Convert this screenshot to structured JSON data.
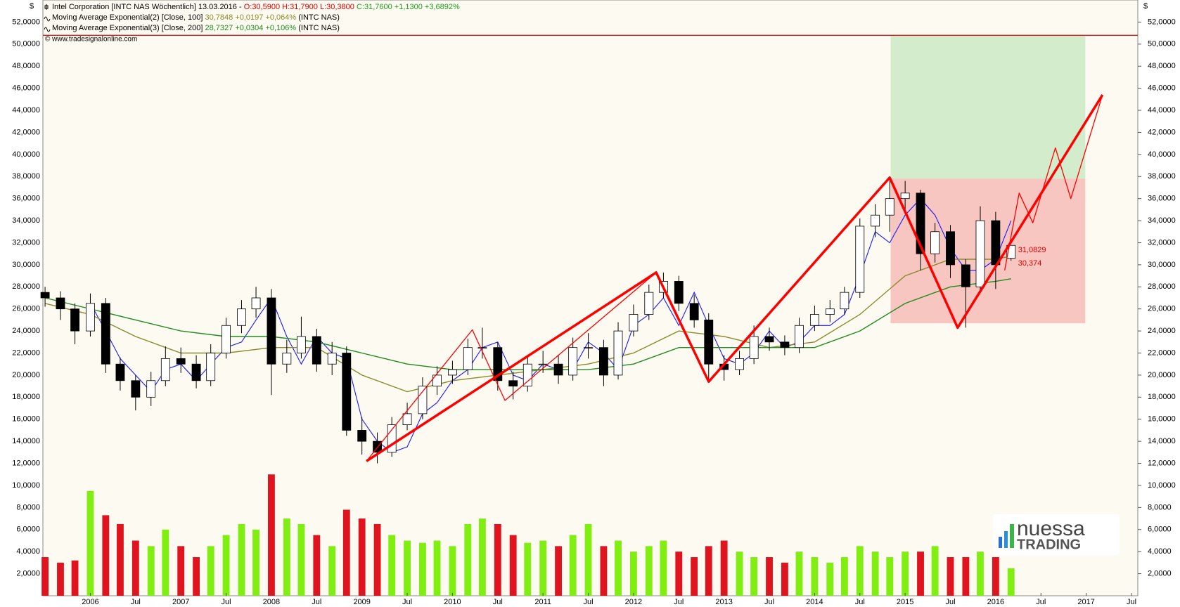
{
  "chart_data": {
    "type": "candlestick",
    "title": "Intel Corporation [INTC NAS  Wöchentlich] 13.03.2016 -",
    "quote": [
      {
        "text": "O:30,5900 H:31,7900 L:30,3800",
        "color": "#e00000"
      },
      {
        "text": "C:31,7600 +1,1300 +3,6892%",
        "color": "#1aa01a"
      }
    ],
    "symbol": "(INTC NAS)",
    "currency": "$",
    "source": "© www.tradesignalonline.com",
    "x": [
      2005.5,
      2005.67,
      2005.83,
      2006,
      2006.17,
      2006.33,
      2006.5,
      2006.67,
      2006.83,
      2007,
      2007.17,
      2007.33,
      2007.5,
      2007.67,
      2007.83,
      2008,
      2008.17,
      2008.33,
      2008.5,
      2008.67,
      2008.83,
      2009,
      2009.17,
      2009.33,
      2009.5,
      2009.67,
      2009.83,
      2010,
      2010.17,
      2010.33,
      2010.5,
      2010.67,
      2010.83,
      2011,
      2011.17,
      2011.33,
      2011.5,
      2011.67,
      2011.83,
      2012,
      2012.17,
      2012.33,
      2012.5,
      2012.67,
      2012.83,
      2013,
      2013.17,
      2013.33,
      2013.5,
      2013.67,
      2013.83,
      2014,
      2014.17,
      2014.33,
      2014.5,
      2014.67,
      2014.83,
      2015,
      2015.17,
      2015.33,
      2015.5,
      2015.67,
      2015.83,
      2016,
      2016.17
    ],
    "open": [
      27.5,
      27,
      26,
      24,
      26.5,
      21,
      19.5,
      18,
      19.5,
      21.5,
      21,
      19.5,
      22,
      24.5,
      26,
      27,
      21,
      22,
      23.5,
      21,
      22,
      15,
      14,
      13,
      15.5,
      16.5,
      19,
      20,
      20.5,
      22.5,
      22.5,
      19.5,
      19,
      21,
      21,
      20,
      22.5,
      22.5,
      20,
      24,
      25.5,
      27.5,
      28.5,
      26.5,
      25,
      21,
      20.5,
      21.5,
      23.5,
      23,
      22.5,
      24.5,
      25.5,
      26,
      27.5,
      33.5,
      34.5,
      36,
      36.5,
      31,
      33,
      30,
      28,
      34,
      30.59
    ],
    "high": [
      28,
      27.6,
      26.5,
      27.4,
      27,
      21.6,
      20,
      20.3,
      22.6,
      22.5,
      21.8,
      22.8,
      25.2,
      26.8,
      28,
      27.8,
      23.2,
      25.3,
      24.2,
      23,
      22.6,
      16.2,
      14.8,
      16.2,
      17.5,
      19.8,
      20.8,
      21.3,
      23.3,
      24.3,
      23,
      20.3,
      21.8,
      22.2,
      21.8,
      23.4,
      23.8,
      23.2,
      24.8,
      26.4,
      28.2,
      29.3,
      29,
      27.3,
      25.6,
      21.8,
      22.2,
      24.5,
      24.3,
      23.6,
      25.2,
      26.3,
      26.8,
      28,
      34.2,
      35.5,
      37.9,
      37.6,
      36.8,
      33.8,
      33.6,
      30.5,
      35.3,
      34.8,
      31.79
    ],
    "low": [
      26.2,
      25,
      22.8,
      23.5,
      20.2,
      18.6,
      16.8,
      17.2,
      19,
      20.2,
      18.8,
      19,
      21.5,
      23.8,
      25.2,
      18.2,
      20.2,
      21.5,
      20.3,
      20,
      14.5,
      12.8,
      12,
      12.6,
      15,
      16,
      18.2,
      19.2,
      20,
      21.5,
      18.6,
      17.8,
      18.5,
      20.2,
      19.2,
      19.5,
      21.5,
      19,
      19.6,
      23.5,
      25,
      27,
      25.8,
      24.3,
      19.4,
      19.5,
      20,
      21,
      22.2,
      21.8,
      22,
      24,
      24.8,
      25.5,
      27,
      32.5,
      33,
      34.8,
      29.5,
      30.2,
      28.8,
      24.3,
      27.5,
      27.8,
      30.38
    ],
    "close": [
      27,
      26,
      24,
      26.5,
      21,
      19.5,
      18,
      19.5,
      21.5,
      21,
      19.5,
      22,
      24.5,
      26,
      27,
      21,
      22,
      23.5,
      21,
      22,
      15,
      14,
      13,
      15.5,
      16.5,
      19,
      20,
      20.5,
      22.5,
      22.5,
      19.5,
      19,
      21,
      21,
      20,
      22.5,
      22.5,
      20,
      24,
      25.5,
      27.5,
      28.5,
      26.5,
      25,
      21,
      20.5,
      21.5,
      23.5,
      23,
      22.5,
      24.5,
      25.5,
      26,
      27.5,
      33.5,
      34.5,
      36,
      36.5,
      31,
      33,
      30,
      28,
      34,
      30,
      31.76
    ],
    "volume": [
      3.5,
      3,
      3.2,
      9.5,
      7.3,
      6.5,
      5,
      4.5,
      6,
      4.5,
      3.5,
      4.5,
      5.5,
      6.5,
      6,
      11,
      7,
      6.5,
      5.5,
      4.5,
      7.8,
      7,
      6.5,
      5.5,
      5,
      4.8,
      5,
      4.5,
      6.5,
      7,
      6.5,
      5.5,
      4.8,
      5,
      4.5,
      5.5,
      6.5,
      4.5,
      5,
      4,
      4.5,
      5,
      4,
      3.5,
      4.5,
      5,
      4,
      3.5,
      3.5,
      3,
      4,
      3.5,
      3,
      3.5,
      4.5,
      4,
      3.5,
      4,
      4,
      4.5,
      3.5,
      3.5,
      4,
      3.5,
      2.5
    ],
    "up_color": "#ffffff",
    "down_color": "#000000",
    "volume_up_color": "#80ee10",
    "volume_down_color": "#e0141e",
    "overlay": {
      "color": "#1a1aff",
      "values": [
        null,
        null,
        null,
        26.5,
        24,
        21.5,
        20,
        18.5,
        20.5,
        21,
        19.5,
        21,
        22.5,
        23,
        25,
        27,
        23.5,
        21,
        23.5,
        22,
        21.5,
        16,
        14,
        13,
        13.5,
        16.5,
        17.5,
        19.5,
        20.5,
        22.5,
        23,
        20,
        19.5,
        21,
        20.5,
        20.5,
        23,
        22,
        20.5,
        24.5,
        25.5,
        27,
        24.5,
        27.5,
        24.5,
        21.5,
        21,
        22,
        24,
        22.5,
        23,
        24.5,
        24.5,
        25.5,
        29,
        33,
        32,
        34.5,
        36,
        34.5,
        31.5,
        29.5,
        29.5,
        30.5,
        34
      ]
    },
    "series": [
      {
        "name": "Moving Average Exponential(2) [Close, 100]",
        "legend_value": "30,7848 +0,0197 +0,064%",
        "color": "#8a8a2a",
        "x": [
          2005.5,
          2006,
          2006.5,
          2007,
          2007.5,
          2008,
          2008.5,
          2009,
          2009.5,
          2010,
          2010.5,
          2011,
          2011.5,
          2012,
          2012.5,
          2013,
          2013.5,
          2014,
          2014.5,
          2015,
          2015.5,
          2016,
          2016.17
        ],
        "values": [
          26.5,
          25.5,
          23.5,
          22,
          22,
          22.5,
          22.5,
          20,
          18.5,
          19.5,
          20,
          20.5,
          21,
          22,
          24,
          23.5,
          22.5,
          23,
          25.5,
          29,
          30.5,
          30.5,
          30.78
        ]
      },
      {
        "name": "Moving Average Exponential(3) [Close, 200]",
        "legend_value": "28,7327 +0,0304 +0,106%",
        "color": "#1e8c1e",
        "x": [
          2005.5,
          2006,
          2006.5,
          2007,
          2007.5,
          2008,
          2008.5,
          2009,
          2009.5,
          2010,
          2010.5,
          2011,
          2011.5,
          2012,
          2012.5,
          2013,
          2013.5,
          2014,
          2014.5,
          2015,
          2015.5,
          2016,
          2016.17
        ],
        "values": [
          27,
          26,
          25,
          24,
          23.5,
          23.5,
          23,
          22,
          21,
          20.5,
          20.5,
          20.5,
          20.5,
          21,
          22.5,
          22.5,
          22.5,
          22.5,
          24,
          26.5,
          28,
          28.5,
          28.73
        ]
      }
    ],
    "drawing_color": "#ff0000",
    "drawings": [
      {
        "style": "thick",
        "x": [
          2009.05,
          2012.25,
          2012.83,
          2014.83,
          2015.58,
          2017.18
        ],
        "values": [
          12.2,
          29.3,
          19.4,
          37.9,
          24.3,
          45.4
        ]
      },
      {
        "style": "thin",
        "x": [
          2009.05,
          2010.22,
          2010.58,
          2012.25
        ],
        "values": [
          12.2,
          24.1,
          17.7,
          29.3
        ]
      },
      {
        "style": "thin",
        "x": [
          2016.1,
          2016.26,
          2016.41,
          2016.66,
          2016.83,
          2017.18
        ],
        "values": [
          29.5,
          36.5,
          33.8,
          40.6,
          36,
          45.4
        ]
      }
    ],
    "zones": [
      {
        "color": "#d3eccb",
        "x": [
          2014.84,
          2016.99
        ],
        "y": [
          37.8,
          50.8
        ]
      },
      {
        "color": "#f8c6c0",
        "x": [
          2014.84,
          2016.99
        ],
        "y": [
          24.7,
          37.8
        ]
      }
    ],
    "hline": {
      "value": 50.8,
      "color": "#e00000"
    },
    "price_labels": [
      {
        "value": 31.0829,
        "label": "31,0829"
      },
      {
        "value": 30.374,
        "label": "30,374"
      }
    ],
    "price_label_color": "#e00000",
    "xlim": [
      2005.476,
      2017.57
    ],
    "xticks": [
      2006,
      {
        "value": 2006.5,
        "label": "Jul"
      },
      2007,
      {
        "value": 2007.5,
        "label": "Jul"
      },
      2008,
      {
        "value": 2008.5,
        "label": "Jul"
      },
      2009,
      {
        "value": 2009.5,
        "label": "Jul"
      },
      2010,
      {
        "value": 2010.5,
        "label": "Jul"
      },
      2011,
      {
        "value": 2011.5,
        "label": "Jul"
      },
      2012,
      {
        "value": 2012.5,
        "label": "Jul"
      },
      2013,
      {
        "value": 2013.5,
        "label": "Jul"
      },
      2014,
      {
        "value": 2014.5,
        "label": "Jul"
      },
      2015,
      {
        "value": 2015.5,
        "label": "Jul"
      },
      2016,
      {
        "value": 2016.5,
        "label": "Jul"
      },
      2017,
      {
        "value": 2017.5,
        "label": "Jul"
      }
    ],
    "ylim": [
      0,
      54
    ],
    "yticks": [
      {
        "value": 2,
        "label": "2,0000"
      },
      {
        "value": 4,
        "label": "4,0000"
      },
      {
        "value": 6,
        "label": "6,0000"
      },
      {
        "value": 8,
        "label": "8,0000"
      },
      {
        "value": 10,
        "label": "10,0000"
      },
      {
        "value": 12,
        "label": "12,0000"
      },
      {
        "value": 14,
        "label": "14,0000"
      },
      {
        "value": 16,
        "label": "16,0000"
      },
      {
        "value": 18,
        "label": "18,0000"
      },
      {
        "value": 20,
        "label": "20,0000"
      },
      {
        "value": 22,
        "label": "22,0000"
      },
      {
        "value": 24,
        "label": "24,0000"
      },
      {
        "value": 26,
        "label": "26,0000"
      },
      {
        "value": 28,
        "label": "28,0000"
      },
      {
        "value": 30,
        "label": "30,0000"
      },
      {
        "value": 32,
        "label": "32,0000"
      },
      {
        "value": 34,
        "label": "34,0000"
      },
      {
        "value": 36,
        "label": "36,0000"
      },
      {
        "value": 38,
        "label": "38,0000"
      },
      {
        "value": 40,
        "label": "40,0000"
      },
      {
        "value": 42,
        "label": "42,0000"
      },
      {
        "value": 44,
        "label": "44,0000"
      },
      {
        "value": 46,
        "label": "46,0000"
      },
      {
        "value": 48,
        "label": "48,0000"
      },
      {
        "value": 50,
        "label": "50,0000"
      },
      {
        "value": 52,
        "label": "52,0000"
      }
    ],
    "grid": false
  },
  "logo": {
    "top": "nuessa",
    "bottom": "TRADING"
  }
}
